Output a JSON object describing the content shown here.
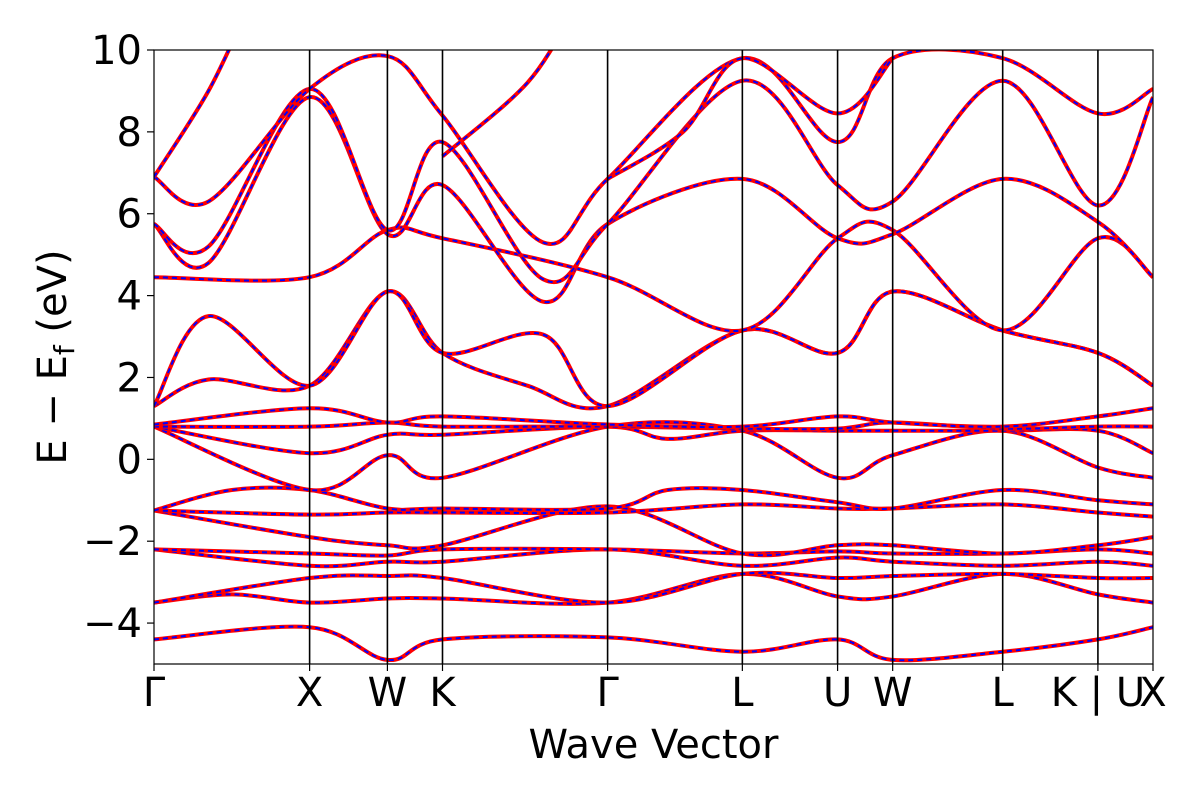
{
  "chart_data": {
    "type": "line",
    "title": "",
    "xlabel": "Wave Vector",
    "ylabel_parts": {
      "main": "E − E",
      "sub": "f",
      "unit": " (eV)"
    },
    "ylim": [
      -5,
      10
    ],
    "y_ticks": [
      10,
      8,
      6,
      4,
      2,
      0,
      -2,
      -4
    ],
    "y_tick_labels": [
      "10",
      "8",
      "6",
      "4",
      "2",
      "0",
      "−2",
      "−4"
    ],
    "k_ticks": [
      {
        "label": "Γ",
        "x": 0.0
      },
      {
        "label": "X",
        "x": 1.0
      },
      {
        "label": "W",
        "x": 1.5
      },
      {
        "label": "K",
        "x": 1.854
      },
      {
        "label": "Γ",
        "x": 2.915
      },
      {
        "label": "L",
        "x": 3.781
      },
      {
        "label": "U",
        "x": 4.393
      },
      {
        "label": "W",
        "x": 4.747
      },
      {
        "label": "L",
        "x": 5.454
      },
      {
        "label": "K | U",
        "x": 6.066
      },
      {
        "label": "X",
        "x": 6.42
      }
    ],
    "grid": false,
    "legend": "none",
    "series_styles": {
      "reference": {
        "color": "#ff0000",
        "style": "solid"
      },
      "overlay": {
        "color": "#0000ff",
        "style": "dashed"
      }
    },
    "bands": [
      {
        "points": [
          [
            0,
            -4.4
          ],
          [
            1.0,
            -4.1
          ],
          [
            1.5,
            -4.9
          ],
          [
            1.854,
            -4.4
          ],
          [
            2.915,
            -4.35
          ],
          [
            3.781,
            -4.7
          ],
          [
            4.393,
            -4.4
          ],
          [
            4.747,
            -4.9
          ],
          [
            5.454,
            -4.7
          ],
          [
            6.066,
            -4.4
          ],
          [
            6.42,
            -4.1
          ]
        ]
      },
      {
        "points": [
          [
            0,
            -3.5
          ],
          [
            0.5,
            -3.3
          ],
          [
            1.0,
            -3.5
          ],
          [
            1.5,
            -3.4
          ],
          [
            1.854,
            -3.4
          ],
          [
            2.915,
            -3.5
          ],
          [
            3.781,
            -2.8
          ],
          [
            4.393,
            -3.35
          ],
          [
            4.747,
            -3.35
          ],
          [
            5.454,
            -2.8
          ],
          [
            6.066,
            -3.3
          ],
          [
            6.42,
            -3.5
          ]
        ]
      },
      {
        "points": [
          [
            0,
            -3.5
          ],
          [
            1.0,
            -2.9
          ],
          [
            1.5,
            -2.85
          ],
          [
            1.854,
            -2.9
          ],
          [
            2.915,
            -3.5
          ],
          [
            3.781,
            -2.8
          ],
          [
            4.393,
            -2.9
          ],
          [
            4.747,
            -2.85
          ],
          [
            5.454,
            -2.8
          ],
          [
            6.066,
            -2.9
          ],
          [
            6.42,
            -2.9
          ]
        ]
      },
      {
        "points": [
          [
            0,
            -2.2
          ],
          [
            1.0,
            -2.6
          ],
          [
            1.5,
            -2.5
          ],
          [
            1.854,
            -2.5
          ],
          [
            2.915,
            -2.2
          ],
          [
            3.781,
            -2.6
          ],
          [
            4.393,
            -2.4
          ],
          [
            4.747,
            -2.5
          ],
          [
            5.454,
            -2.6
          ],
          [
            6.066,
            -2.5
          ],
          [
            6.42,
            -2.6
          ]
        ]
      },
      {
        "points": [
          [
            0,
            -2.2
          ],
          [
            1.0,
            -2.3
          ],
          [
            1.5,
            -2.35
          ],
          [
            1.854,
            -2.2
          ],
          [
            2.915,
            -2.2
          ],
          [
            3.781,
            -2.3
          ],
          [
            4.393,
            -2.25
          ],
          [
            4.747,
            -2.3
          ],
          [
            5.454,
            -2.3
          ],
          [
            6.066,
            -2.2
          ],
          [
            6.42,
            -2.3
          ]
        ]
      },
      {
        "points": [
          [
            0,
            -1.25
          ],
          [
            1.0,
            -1.9
          ],
          [
            1.5,
            -2.1
          ],
          [
            1.854,
            -2.1
          ],
          [
            2.915,
            -1.15
          ],
          [
            3.781,
            -2.3
          ],
          [
            4.393,
            -2.1
          ],
          [
            4.747,
            -2.1
          ],
          [
            5.454,
            -2.3
          ],
          [
            6.066,
            -2.1
          ],
          [
            6.42,
            -1.9
          ]
        ]
      },
      {
        "points": [
          [
            0,
            -1.25
          ],
          [
            1.0,
            -1.35
          ],
          [
            1.5,
            -1.3
          ],
          [
            1.854,
            -1.3
          ],
          [
            2.915,
            -1.3
          ],
          [
            3.781,
            -1.1
          ],
          [
            4.393,
            -1.2
          ],
          [
            4.747,
            -1.2
          ],
          [
            5.454,
            -1.1
          ],
          [
            6.066,
            -1.3
          ],
          [
            6.42,
            -1.4
          ]
        ]
      },
      {
        "points": [
          [
            0,
            -1.25
          ],
          [
            0.5,
            -0.75
          ],
          [
            1.0,
            -0.75
          ],
          [
            1.5,
            -1.2
          ],
          [
            1.854,
            -1.2
          ],
          [
            2.915,
            -1.2
          ],
          [
            3.3,
            -0.75
          ],
          [
            3.781,
            -0.75
          ],
          [
            4.393,
            -1.05
          ],
          [
            4.747,
            -1.2
          ],
          [
            5.454,
            -0.75
          ],
          [
            6.066,
            -1.0
          ],
          [
            6.42,
            -1.1
          ]
        ]
      },
      {
        "points": [
          [
            0,
            0.8
          ],
          [
            1.0,
            -0.75
          ],
          [
            1.5,
            0.1
          ],
          [
            1.854,
            -0.45
          ],
          [
            2.915,
            0.8
          ],
          [
            3.781,
            0.7
          ],
          [
            4.393,
            -0.45
          ],
          [
            4.747,
            0.1
          ],
          [
            5.454,
            0.7
          ],
          [
            6.066,
            -0.2
          ],
          [
            6.42,
            -0.45
          ]
        ]
      },
      {
        "points": [
          [
            0,
            0.8
          ],
          [
            1.0,
            0.15
          ],
          [
            1.5,
            0.6
          ],
          [
            1.854,
            0.6
          ],
          [
            2.915,
            0.8
          ],
          [
            3.3,
            0.5
          ],
          [
            3.781,
            0.7
          ],
          [
            4.393,
            0.7
          ],
          [
            4.747,
            0.7
          ],
          [
            5.454,
            0.7
          ],
          [
            6.066,
            0.7
          ],
          [
            6.42,
            0.15
          ]
        ]
      },
      {
        "points": [
          [
            0,
            0.8
          ],
          [
            1.0,
            0.8
          ],
          [
            1.5,
            0.9
          ],
          [
            1.854,
            0.8
          ],
          [
            2.915,
            0.8
          ],
          [
            3.781,
            0.75
          ],
          [
            4.393,
            0.75
          ],
          [
            4.747,
            0.9
          ],
          [
            5.454,
            0.75
          ],
          [
            6.066,
            0.8
          ],
          [
            6.42,
            0.8
          ]
        ]
      },
      {
        "points": [
          [
            0,
            0.85
          ],
          [
            1.0,
            1.25
          ],
          [
            1.5,
            0.9
          ],
          [
            1.854,
            1.05
          ],
          [
            2.915,
            0.85
          ],
          [
            3.781,
            0.8
          ],
          [
            4.393,
            1.05
          ],
          [
            4.747,
            0.9
          ],
          [
            5.454,
            0.8
          ],
          [
            6.066,
            1.05
          ],
          [
            6.42,
            1.25
          ]
        ]
      },
      {
        "points": [
          [
            0,
            1.3
          ],
          [
            0.35,
            1.95
          ],
          [
            1.0,
            1.8
          ],
          [
            1.5,
            4.1
          ],
          [
            1.854,
            2.6
          ],
          [
            2.4,
            1.8
          ],
          [
            2.915,
            1.3
          ],
          [
            3.781,
            3.15
          ],
          [
            4.393,
            2.6
          ],
          [
            4.747,
            4.1
          ],
          [
            5.454,
            3.15
          ],
          [
            6.066,
            2.6
          ],
          [
            6.42,
            1.8
          ]
        ]
      },
      {
        "points": [
          [
            0,
            1.3
          ],
          [
            0.35,
            3.5
          ],
          [
            1.0,
            1.8
          ],
          [
            1.5,
            4.1
          ],
          [
            1.854,
            2.6
          ],
          [
            2.5,
            3.05
          ],
          [
            2.915,
            1.3
          ],
          [
            3.781,
            3.15
          ],
          [
            4.393,
            2.6
          ],
          [
            4.747,
            4.1
          ],
          [
            5.454,
            3.15
          ],
          [
            6.066,
            2.6
          ],
          [
            6.42,
            1.8
          ]
        ]
      },
      {
        "points": [
          [
            0,
            4.45
          ],
          [
            1.0,
            4.45
          ],
          [
            1.5,
            5.6
          ],
          [
            1.854,
            5.4
          ],
          [
            2.915,
            4.45
          ],
          [
            3.781,
            3.15
          ],
          [
            4.393,
            5.4
          ],
          [
            4.747,
            5.6
          ],
          [
            5.454,
            3.15
          ],
          [
            6.066,
            5.4
          ],
          [
            6.42,
            4.45
          ]
        ]
      },
      {
        "points": [
          [
            0,
            5.75
          ],
          [
            0.35,
            4.8
          ],
          [
            1.0,
            8.85
          ],
          [
            1.5,
            5.5
          ],
          [
            1.854,
            6.7
          ],
          [
            2.5,
            3.85
          ],
          [
            2.915,
            5.75
          ],
          [
            3.781,
            6.85
          ],
          [
            4.393,
            5.4
          ],
          [
            4.747,
            5.5
          ],
          [
            5.454,
            6.85
          ],
          [
            6.066,
            5.8
          ],
          [
            6.42,
            4.45
          ]
        ]
      },
      {
        "points": [
          [
            0,
            5.75
          ],
          [
            0.35,
            5.2
          ],
          [
            1.0,
            9.05
          ],
          [
            1.5,
            5.6
          ],
          [
            1.854,
            7.75
          ],
          [
            2.5,
            4.4
          ],
          [
            2.915,
            5.75
          ],
          [
            3.781,
            9.25
          ],
          [
            4.393,
            6.7
          ],
          [
            4.747,
            6.3
          ],
          [
            5.454,
            9.25
          ],
          [
            6.066,
            6.2
          ],
          [
            6.42,
            8.85
          ]
        ]
      },
      {
        "points": [
          [
            0,
            6.9
          ],
          [
            0.35,
            6.3
          ],
          [
            1.0,
            9.05
          ],
          [
            1.5,
            9.85
          ],
          [
            1.854,
            8.4
          ],
          [
            2.5,
            5.3
          ],
          [
            2.915,
            6.85
          ],
          [
            3.781,
            9.8
          ],
          [
            4.393,
            7.75
          ],
          [
            4.747,
            9.8
          ],
          [
            5.454,
            9.8
          ],
          [
            6.066,
            8.45
          ],
          [
            6.42,
            9.05
          ]
        ]
      },
      {
        "points": [
          [
            0,
            6.9
          ],
          [
            0.35,
            9.0
          ],
          [
            0.6,
            11.0
          ]
        ]
      },
      {
        "points": [
          [
            2.915,
            6.85
          ],
          [
            3.4,
            8.0
          ],
          [
            3.781,
            9.8
          ],
          [
            4.393,
            8.45
          ],
          [
            4.747,
            9.8
          ]
        ]
      },
      {
        "points": [
          [
            1.854,
            7.4
          ],
          [
            2.4,
            9.2
          ],
          [
            2.7,
            11.0
          ]
        ]
      }
    ]
  }
}
